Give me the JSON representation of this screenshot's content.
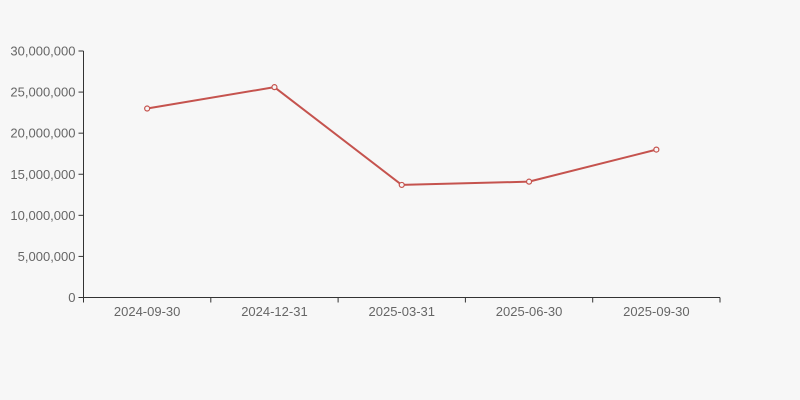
{
  "chart_data": {
    "type": "line",
    "title": "",
    "xlabel": "",
    "ylabel": "",
    "categories": [
      "2024-09-30",
      "2024-12-31",
      "2025-03-31",
      "2025-06-30",
      "2025-09-30"
    ],
    "series": [
      {
        "name": "value",
        "values": [
          23000000,
          25600000,
          13700000,
          14100000,
          18000000
        ]
      }
    ],
    "ylim": [
      0,
      30000000
    ],
    "ytick_step": 5000000,
    "ytick_labels": [
      "0",
      "5,000,000",
      "10,000,000",
      "15,000,000",
      "20,000,000",
      "25,000,000",
      "30,000,000"
    ],
    "grid": false,
    "legend_position": "none",
    "marker": "open-circle",
    "colors": {
      "line": "#c5534e",
      "marker_fill": "#f7f7f7",
      "axis": "#333333",
      "tick_label": "#666666",
      "background": "#f7f7f7"
    }
  }
}
